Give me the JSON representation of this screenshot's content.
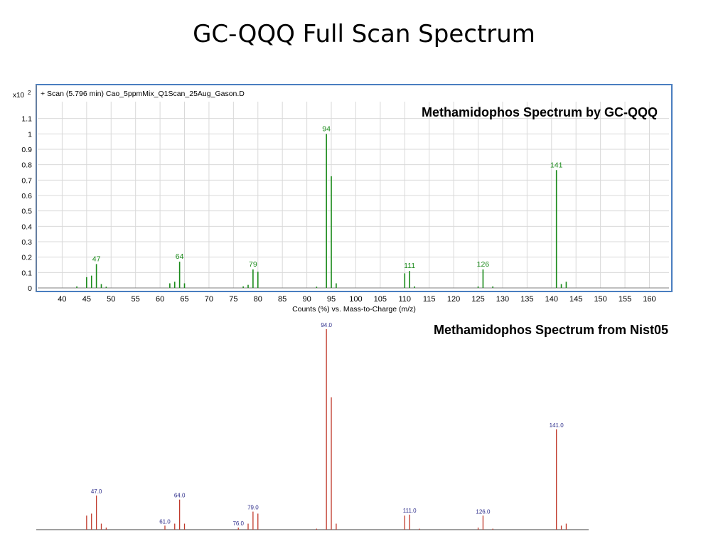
{
  "slide": {
    "title": "GC-QQQ  Full Scan Spectrum"
  },
  "colors": {
    "frame_border": "#4a7ec0",
    "gcqqq_peaks": "#1a8a1a",
    "nist_peaks": "#c0392b",
    "nist_labels": "#2c2c8a",
    "grid": "#d9d9d9"
  },
  "chart_data": [
    {
      "type": "bar",
      "title": "Methamidophos Spectrum by GC-QQQ",
      "header": "+ Scan (5.796 min) Cao_5ppmMix_Q1Scan_25Aug_Gason.D",
      "xlabel": "Counts (%) vs. Mass-to-Charge (m/z)",
      "ylabel": "",
      "y_multiplier": "x10",
      "y_multiplier_exp": "2",
      "xlim": [
        35,
        164
      ],
      "ylim": [
        0,
        1.2
      ],
      "x_ticks": [
        40,
        45,
        50,
        55,
        60,
        65,
        70,
        75,
        80,
        85,
        90,
        95,
        100,
        105,
        110,
        115,
        120,
        125,
        130,
        135,
        140,
        145,
        150,
        155,
        160
      ],
      "y_ticks": [
        0,
        0.1,
        0.2,
        0.3,
        0.4,
        0.5,
        0.6,
        0.7,
        0.8,
        0.9,
        1,
        1.1
      ],
      "y_tick_labels": [
        "0",
        "0.1",
        "0.2",
        "0.3",
        "0.4",
        "0.5",
        "0.6",
        "0.7",
        "0.8",
        "0.9",
        "1",
        "1.1"
      ],
      "grid": true,
      "peaks": [
        {
          "x": 43,
          "y": 0.01
        },
        {
          "x": 45,
          "y": 0.07
        },
        {
          "x": 46,
          "y": 0.08
        },
        {
          "x": 47,
          "y": 0.155
        },
        {
          "x": 48,
          "y": 0.025
        },
        {
          "x": 49,
          "y": 0.008
        },
        {
          "x": 62,
          "y": 0.03
        },
        {
          "x": 63,
          "y": 0.04
        },
        {
          "x": 64,
          "y": 0.17
        },
        {
          "x": 65,
          "y": 0.03
        },
        {
          "x": 77,
          "y": 0.01
        },
        {
          "x": 78,
          "y": 0.02
        },
        {
          "x": 79,
          "y": 0.12
        },
        {
          "x": 80,
          "y": 0.105
        },
        {
          "x": 92,
          "y": 0.008
        },
        {
          "x": 94,
          "y": 1.0
        },
        {
          "x": 95,
          "y": 0.725
        },
        {
          "x": 96,
          "y": 0.03
        },
        {
          "x": 110,
          "y": 0.095
        },
        {
          "x": 111,
          "y": 0.11
        },
        {
          "x": 112,
          "y": 0.01
        },
        {
          "x": 125,
          "y": 0.01
        },
        {
          "x": 126,
          "y": 0.12
        },
        {
          "x": 128,
          "y": 0.01
        },
        {
          "x": 141,
          "y": 0.765
        },
        {
          "x": 142,
          "y": 0.025
        },
        {
          "x": 143,
          "y": 0.04
        }
      ],
      "peak_labels": [
        {
          "x": 47,
          "y": 0.155,
          "text": "47"
        },
        {
          "x": 64,
          "y": 0.17,
          "text": "64"
        },
        {
          "x": 79,
          "y": 0.12,
          "text": "79"
        },
        {
          "x": 94,
          "y": 1.0,
          "text": "94"
        },
        {
          "x": 111,
          "y": 0.11,
          "text": "111"
        },
        {
          "x": 126,
          "y": 0.12,
          "text": "126"
        },
        {
          "x": 141,
          "y": 0.765,
          "text": "141"
        }
      ]
    },
    {
      "type": "bar",
      "title": "Methamidophos Spectrum from Nist05",
      "xlim": [
        35,
        164
      ],
      "ylim": [
        0,
        1.0
      ],
      "grid": false,
      "peaks": [
        {
          "x": 45,
          "y": 0.07
        },
        {
          "x": 46,
          "y": 0.08
        },
        {
          "x": 47,
          "y": 0.17
        },
        {
          "x": 48,
          "y": 0.03
        },
        {
          "x": 49,
          "y": 0.01
        },
        {
          "x": 61,
          "y": 0.02
        },
        {
          "x": 63,
          "y": 0.03
        },
        {
          "x": 64,
          "y": 0.15
        },
        {
          "x": 65,
          "y": 0.03
        },
        {
          "x": 76,
          "y": 0.01
        },
        {
          "x": 78,
          "y": 0.03
        },
        {
          "x": 79,
          "y": 0.09
        },
        {
          "x": 80,
          "y": 0.08
        },
        {
          "x": 92,
          "y": 0.005
        },
        {
          "x": 94,
          "y": 1.0
        },
        {
          "x": 95,
          "y": 0.66
        },
        {
          "x": 96,
          "y": 0.03
        },
        {
          "x": 110,
          "y": 0.07
        },
        {
          "x": 111,
          "y": 0.075
        },
        {
          "x": 113,
          "y": 0.005
        },
        {
          "x": 125,
          "y": 0.01
        },
        {
          "x": 126,
          "y": 0.07
        },
        {
          "x": 128,
          "y": 0.005
        },
        {
          "x": 141,
          "y": 0.5
        },
        {
          "x": 142,
          "y": 0.02
        },
        {
          "x": 143,
          "y": 0.03
        }
      ],
      "peak_labels": [
        {
          "x": 47,
          "y": 0.17,
          "text": "47.0"
        },
        {
          "x": 61,
          "y": 0.02,
          "text": "61.0"
        },
        {
          "x": 64,
          "y": 0.15,
          "text": "64.0"
        },
        {
          "x": 76,
          "y": 0.01,
          "text": "76.0"
        },
        {
          "x": 79,
          "y": 0.09,
          "text": "79.0"
        },
        {
          "x": 94,
          "y": 1.0,
          "text": "94.0"
        },
        {
          "x": 111,
          "y": 0.075,
          "text": "111.0"
        },
        {
          "x": 126,
          "y": 0.07,
          "text": "126.0"
        },
        {
          "x": 141,
          "y": 0.5,
          "text": "141.0"
        }
      ]
    }
  ]
}
